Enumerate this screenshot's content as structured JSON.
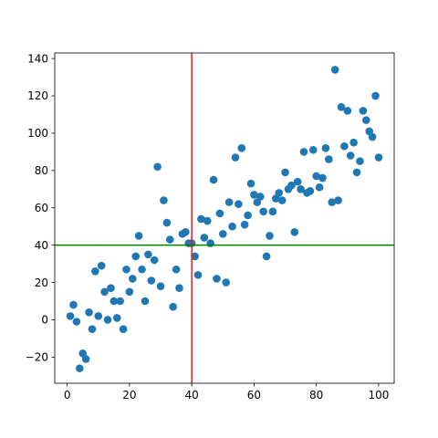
{
  "chart_data": {
    "type": "scatter",
    "title": "",
    "xlabel": "",
    "ylabel": "",
    "xlim": [
      -4,
      105
    ],
    "ylim": [
      -34,
      143
    ],
    "xticks": [
      0,
      20,
      40,
      60,
      80,
      100
    ],
    "yticks": [
      -20,
      0,
      20,
      40,
      60,
      80,
      100,
      120,
      140
    ],
    "xtick_labels": [
      "0",
      "20",
      "40",
      "60",
      "80",
      "100"
    ],
    "ytick_labels": [
      "−20",
      "0",
      "20",
      "40",
      "60",
      "80",
      "100",
      "120",
      "140"
    ],
    "grid": false,
    "point_color": "#1f77b4",
    "vline": {
      "x": 40,
      "color": "#d62728"
    },
    "hline": {
      "y": 40,
      "color": "#008000"
    },
    "points": [
      [
        1,
        2
      ],
      [
        2,
        8
      ],
      [
        3,
        -1
      ],
      [
        4,
        -26
      ],
      [
        5,
        -18
      ],
      [
        6,
        -21
      ],
      [
        7,
        4
      ],
      [
        8,
        -5
      ],
      [
        9,
        26
      ],
      [
        10,
        2
      ],
      [
        11,
        29
      ],
      [
        12,
        15
      ],
      [
        13,
        0
      ],
      [
        14,
        17
      ],
      [
        15,
        10
      ],
      [
        16,
        1
      ],
      [
        17,
        10
      ],
      [
        18,
        -5
      ],
      [
        19,
        27
      ],
      [
        20,
        15
      ],
      [
        21,
        22
      ],
      [
        22,
        34
      ],
      [
        23,
        45
      ],
      [
        24,
        27
      ],
      [
        25,
        10
      ],
      [
        26,
        35
      ],
      [
        27,
        21
      ],
      [
        28,
        32
      ],
      [
        29,
        82
      ],
      [
        30,
        18
      ],
      [
        31,
        64
      ],
      [
        32,
        52
      ],
      [
        33,
        43
      ],
      [
        34,
        7
      ],
      [
        35,
        27
      ],
      [
        36,
        17
      ],
      [
        37,
        46
      ],
      [
        38,
        47
      ],
      [
        39,
        41
      ],
      [
        40,
        41
      ],
      [
        41,
        34
      ],
      [
        42,
        24
      ],
      [
        43,
        54
      ],
      [
        44,
        44
      ],
      [
        45,
        53
      ],
      [
        46,
        41
      ],
      [
        47,
        75
      ],
      [
        48,
        22
      ],
      [
        49,
        57
      ],
      [
        50,
        46
      ],
      [
        51,
        20
      ],
      [
        52,
        63
      ],
      [
        53,
        50
      ],
      [
        54,
        87
      ],
      [
        55,
        62
      ],
      [
        56,
        92
      ],
      [
        57,
        51
      ],
      [
        58,
        56
      ],
      [
        59,
        73
      ],
      [
        60,
        67
      ],
      [
        61,
        63
      ],
      [
        62,
        66
      ],
      [
        63,
        58
      ],
      [
        64,
        34
      ],
      [
        65,
        45
      ],
      [
        66,
        58
      ],
      [
        67,
        65
      ],
      [
        68,
        68
      ],
      [
        69,
        64
      ],
      [
        70,
        79
      ],
      [
        71,
        70
      ],
      [
        72,
        72
      ],
      [
        73,
        47
      ],
      [
        74,
        74
      ],
      [
        75,
        70
      ],
      [
        76,
        90
      ],
      [
        77,
        68
      ],
      [
        78,
        69
      ],
      [
        79,
        91
      ],
      [
        80,
        77
      ],
      [
        81,
        71
      ],
      [
        82,
        76
      ],
      [
        83,
        92
      ],
      [
        84,
        86
      ],
      [
        85,
        63
      ],
      [
        86,
        134
      ],
      [
        87,
        64
      ],
      [
        88,
        114
      ],
      [
        89,
        93
      ],
      [
        90,
        112
      ],
      [
        91,
        88
      ],
      [
        92,
        95
      ],
      [
        93,
        79
      ],
      [
        94,
        85
      ],
      [
        95,
        112
      ],
      [
        96,
        107
      ],
      [
        97,
        101
      ],
      [
        98,
        98
      ],
      [
        99,
        120
      ],
      [
        100,
        87
      ]
    ]
  }
}
